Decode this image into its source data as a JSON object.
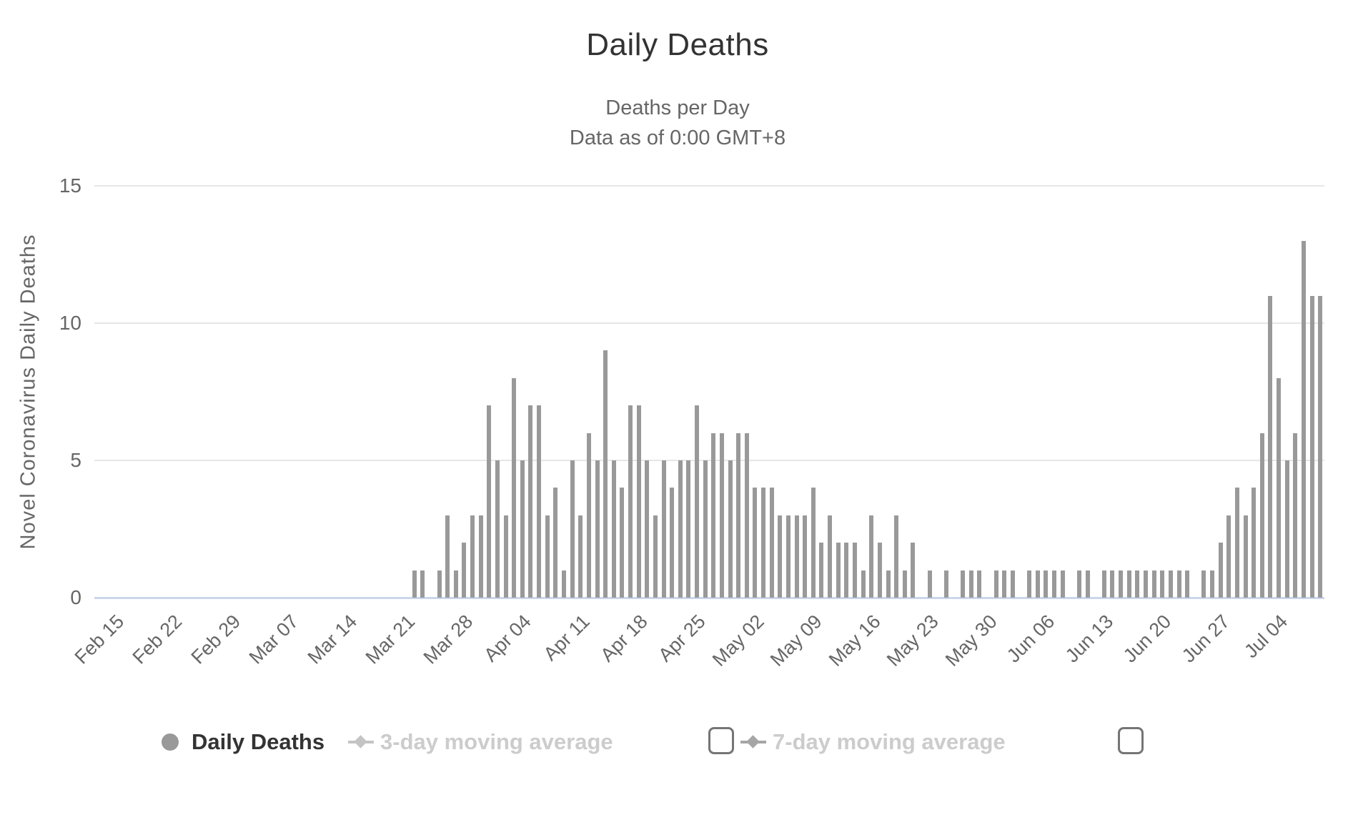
{
  "header": {
    "title": "Daily Deaths",
    "subtitle_line1": "Deaths per Day",
    "subtitle_line2": "Data as of 0:00 GMT+8"
  },
  "legend": {
    "items": [
      {
        "label": "Daily Deaths",
        "state": "active",
        "marker": "circle"
      },
      {
        "label": "3-day moving average",
        "state": "hidden",
        "marker": "diamond-line",
        "checkbox": "unchecked"
      },
      {
        "label": "7-day moving average",
        "state": "hidden",
        "marker": "diamond-line",
        "checkbox": "unchecked"
      }
    ]
  },
  "colors": {
    "bar": "#999999",
    "title": "#333333",
    "subtitle": "#666666",
    "axis_label": "#666666",
    "gridline": "#e6e6e6",
    "axis_line": "#ccd6eb",
    "legend_active_text": "#333333",
    "legend_hidden_text": "#cccccc",
    "legend_marker_3day": "#c4c4c4",
    "legend_marker_7day": "#a6a6a6",
    "checkbox_border": "#757575"
  },
  "chart_data": {
    "type": "bar",
    "title": "Daily Deaths",
    "subtitle_lines": [
      "Deaths per Day",
      "Data as of 0:00 GMT+8"
    ],
    "series_name": "Daily Deaths",
    "xlabel": "",
    "ylabel": "Novel Coronavirus Daily Deaths",
    "ylim": [
      0,
      15
    ],
    "yticks": [
      0,
      5,
      10,
      15
    ],
    "grid": "horizontal",
    "legend_position": "bottom",
    "x_start_date": "2020-02-13",
    "x_end_date": "2020-07-09",
    "values": [
      0,
      0,
      0,
      0,
      0,
      0,
      0,
      0,
      0,
      0,
      0,
      0,
      0,
      0,
      0,
      0,
      0,
      0,
      0,
      0,
      0,
      0,
      0,
      0,
      0,
      0,
      0,
      0,
      0,
      0,
      0,
      0,
      0,
      0,
      0,
      0,
      0,
      0,
      1,
      1,
      0,
      1,
      3,
      1,
      2,
      3,
      3,
      7,
      5,
      3,
      8,
      5,
      7,
      7,
      3,
      4,
      1,
      5,
      3,
      6,
      5,
      9,
      5,
      4,
      7,
      7,
      5,
      3,
      5,
      4,
      5,
      5,
      7,
      5,
      6,
      6,
      5,
      6,
      6,
      4,
      4,
      4,
      3,
      3,
      3,
      3,
      4,
      2,
      3,
      2,
      2,
      2,
      1,
      3,
      2,
      1,
      3,
      1,
      2,
      0,
      1,
      0,
      1,
      0,
      1,
      1,
      1,
      0,
      1,
      1,
      1,
      0,
      1,
      1,
      1,
      1,
      1,
      0,
      1,
      1,
      0,
      1,
      1,
      1,
      1,
      1,
      1,
      1,
      1,
      1,
      1,
      1,
      0,
      1,
      1,
      2,
      3,
      4,
      3,
      4,
      6,
      11,
      8,
      5,
      6,
      13,
      11,
      11
    ],
    "xticks": [
      {
        "label": "Feb 15",
        "day": 2
      },
      {
        "label": "Feb 22",
        "day": 9
      },
      {
        "label": "Feb 29",
        "day": 16
      },
      {
        "label": "Mar 07",
        "day": 23
      },
      {
        "label": "Mar 14",
        "day": 30
      },
      {
        "label": "Mar 21",
        "day": 37
      },
      {
        "label": "Mar 28",
        "day": 44
      },
      {
        "label": "Apr 04",
        "day": 51
      },
      {
        "label": "Apr 11",
        "day": 58
      },
      {
        "label": "Apr 18",
        "day": 65
      },
      {
        "label": "Apr 25",
        "day": 72
      },
      {
        "label": "May 02",
        "day": 79
      },
      {
        "label": "May 09",
        "day": 86
      },
      {
        "label": "May 16",
        "day": 93
      },
      {
        "label": "May 23",
        "day": 100
      },
      {
        "label": "May 30",
        "day": 107
      },
      {
        "label": "Jun 06",
        "day": 114
      },
      {
        "label": "Jun 13",
        "day": 121
      },
      {
        "label": "Jun 20",
        "day": 128
      },
      {
        "label": "Jun 27",
        "day": 135
      },
      {
        "label": "Jul 04",
        "day": 142
      }
    ]
  }
}
